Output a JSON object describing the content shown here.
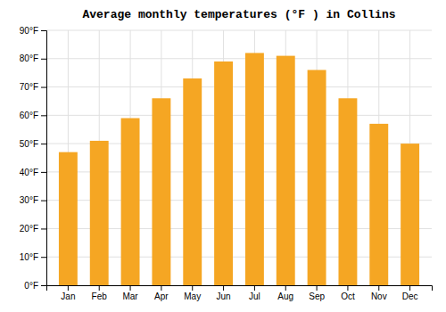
{
  "chart_data": {
    "type": "bar",
    "title": "Average monthly temperatures (°F ) in Collins",
    "categories": [
      "Jan",
      "Feb",
      "Mar",
      "Apr",
      "May",
      "Jun",
      "Jul",
      "Aug",
      "Sep",
      "Oct",
      "Nov",
      "Dec"
    ],
    "values": [
      47,
      51,
      59,
      66,
      73,
      79,
      82,
      81,
      76,
      66,
      57,
      50
    ],
    "color": "#F5A623",
    "ylim": [
      0,
      90
    ],
    "yticks": [
      {
        "value": 0,
        "label": "0°F"
      },
      {
        "value": 10,
        "label": "10°F"
      },
      {
        "value": 20,
        "label": "20°F"
      },
      {
        "value": 30,
        "label": "30°F"
      },
      {
        "value": 40,
        "label": "40°F"
      },
      {
        "value": 50,
        "label": "50°F"
      },
      {
        "value": 60,
        "label": "60°F"
      },
      {
        "value": 70,
        "label": "70°F"
      },
      {
        "value": 80,
        "label": "80°F"
      },
      {
        "value": 90,
        "label": "90°F"
      }
    ],
    "grid": true
  }
}
